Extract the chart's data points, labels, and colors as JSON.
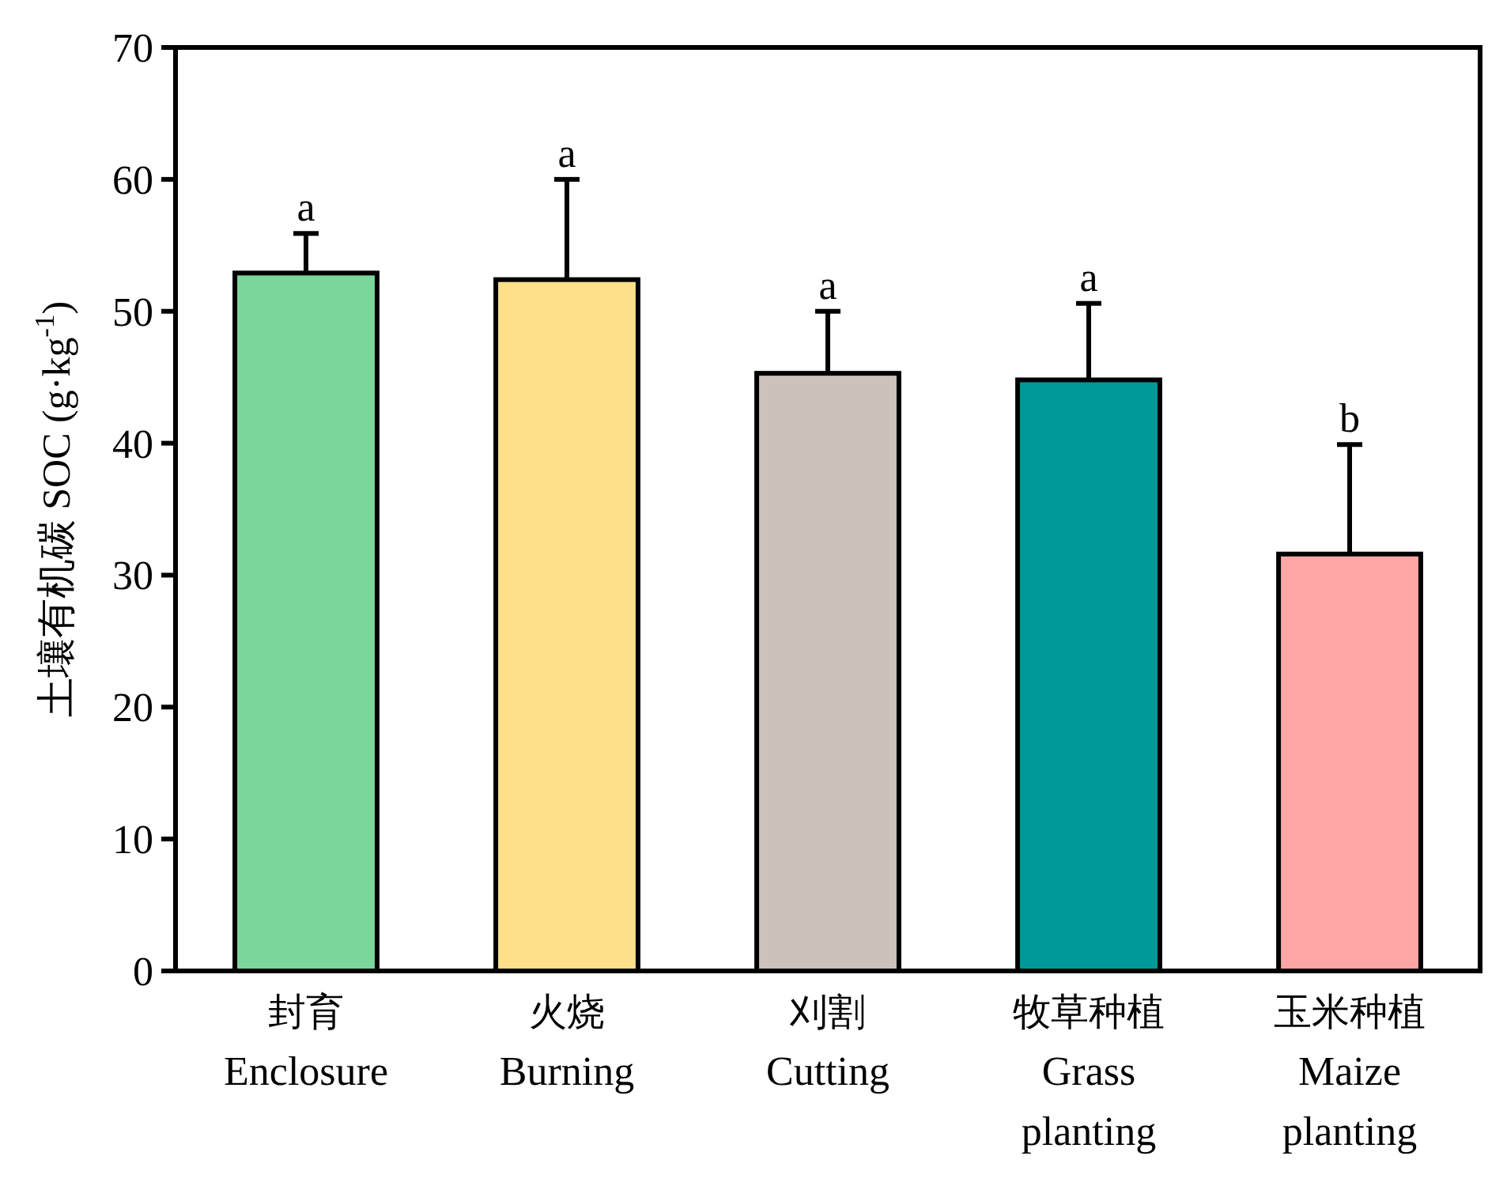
{
  "chart_data": {
    "type": "bar",
    "ylabel": "土壤有机碳 SOC (g·kg$^{-1}$)",
    "categories": [
      "封育\nEnclosure",
      "火烧\nBurning",
      "刈割\nCutting",
      "牧草种植\nGrass\nplanting",
      "玉米种植\nMaize\nplanting"
    ],
    "values": [
      52.9,
      52.4,
      45.3,
      44.8,
      31.6
    ],
    "errors": [
      3.0,
      7.6,
      4.7,
      5.8,
      8.3
    ],
    "colors": [
      "#7ad69a",
      "#fde089",
      "#cbc2bc",
      "#00999a",
      "#fea6a5"
    ],
    "ylim": [
      0,
      70
    ],
    "yticks": [
      0,
      10,
      20,
      30,
      40,
      50,
      60,
      70
    ],
    "annotations": [
      {
        "text": "a",
        "x": "封育\nEnclosure",
        "y": 55.9
      },
      {
        "text": "a",
        "x": "火烧\nBurning",
        "y": 60.0
      },
      {
        "text": "a",
        "x": "刈割\nCutting",
        "y": 50.0
      },
      {
        "text": "a",
        "x": "牧草种植\nGrass\nplanting",
        "y": 50.6
      },
      {
        "text": "b",
        "x": "玉米种植\nMaize\nplanting",
        "y": 39.9
      }
    ]
  }
}
